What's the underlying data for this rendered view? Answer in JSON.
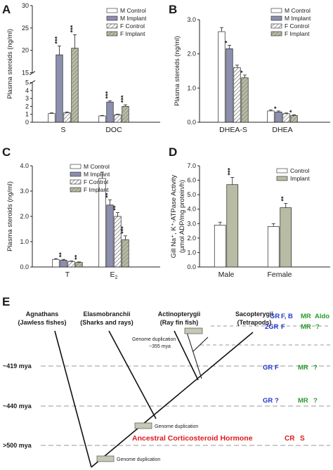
{
  "colors": {
    "m_control": "#ffffff",
    "m_implant": "#8c8fae",
    "f_control": "#ffffff",
    "f_implant": "#b9bca4",
    "implant_D": "#b9bca4",
    "gr_blue": "#2238c9",
    "mr_green": "#2a9a2a",
    "cr_red": "#e0191c",
    "dash_gray": "#999999",
    "box_gray": "#c4c8b4"
  },
  "panels": {
    "A": {
      "letter": "A"
    },
    "B": {
      "letter": "B"
    },
    "C": {
      "letter": "C"
    },
    "D": {
      "letter": "D"
    },
    "E": {
      "letter": "E"
    }
  },
  "chart_data": [
    {
      "panel": "A",
      "type": "bar",
      "ylabel": "Plasma steroids (ng/ml)",
      "categories": [
        "S",
        "DOC"
      ],
      "ylim": [
        0,
        30
      ],
      "axis_break": {
        "from": 5,
        "to": 15
      },
      "yticks": [
        0,
        1,
        2,
        3,
        4,
        5,
        15,
        20,
        25,
        30
      ],
      "legend": [
        "M Control",
        "M Implant",
        "F Control",
        "F Implant"
      ],
      "series": [
        {
          "name": "M Control",
          "values": [
            1.1,
            0.8
          ],
          "errors": [
            0.08,
            0.06
          ],
          "stars": [
            "",
            ""
          ]
        },
        {
          "name": "M Implant",
          "values": [
            19.0,
            2.55
          ],
          "errors": [
            2.0,
            0.15
          ],
          "stars": [
            "***",
            "***"
          ]
        },
        {
          "name": "F Control",
          "values": [
            1.2,
            0.95
          ],
          "errors": [
            0.1,
            0.07
          ],
          "stars": [
            "",
            ""
          ]
        },
        {
          "name": "F Implant",
          "values": [
            20.5,
            2.0
          ],
          "errors": [
            3.0,
            0.2
          ],
          "stars": [
            "***",
            "***"
          ]
        }
      ]
    },
    {
      "panel": "B",
      "type": "bar",
      "ylabel": "Plasma steroids (ng/ml)",
      "categories": [
        "DHEA-S",
        "DHEA"
      ],
      "ylim": [
        0,
        3.0
      ],
      "yticks": [
        0.0,
        1.0,
        2.0,
        3.0
      ],
      "legend": [
        "M Control",
        "M Implant",
        "F Control",
        "F Implant"
      ],
      "series": [
        {
          "name": "M Control",
          "values": [
            2.65,
            0.33
          ],
          "errors": [
            0.12,
            0.03
          ],
          "stars": [
            "",
            ""
          ]
        },
        {
          "name": "M Implant",
          "values": [
            2.15,
            0.3
          ],
          "errors": [
            0.1,
            0.03
          ],
          "stars": [
            "*",
            "*"
          ]
        },
        {
          "name": "F Control",
          "values": [
            1.6,
            0.25
          ],
          "errors": [
            0.07,
            0.02
          ],
          "stars": [
            "",
            ""
          ]
        },
        {
          "name": "F Implant",
          "values": [
            1.3,
            0.2
          ],
          "errors": [
            0.08,
            0.02
          ],
          "stars": [
            "*",
            "*"
          ]
        }
      ]
    },
    {
      "panel": "C",
      "type": "bar",
      "ylabel": "Plasma steroids (ng/ml)",
      "categories": [
        "T",
        "E₂"
      ],
      "ylim": [
        0,
        4.0
      ],
      "yticks": [
        0.0,
        1.0,
        2.0,
        3.0,
        4.0
      ],
      "legend": [
        "M Control",
        "M Implant",
        "F Control",
        "F Implant"
      ],
      "series": [
        {
          "name": "M Control",
          "values": [
            0.3,
            3.5
          ],
          "errors": [
            0.03,
            0.25
          ],
          "stars": [
            "",
            ""
          ]
        },
        {
          "name": "M Implant",
          "values": [
            0.27,
            2.45
          ],
          "errors": [
            0.03,
            0.2
          ],
          "stars": [
            "**",
            "**"
          ]
        },
        {
          "name": "F Control",
          "values": [
            0.22,
            2.0
          ],
          "errors": [
            0.02,
            0.15
          ],
          "stars": [
            "",
            "**"
          ]
        },
        {
          "name": "F Implant",
          "values": [
            0.18,
            1.08
          ],
          "errors": [
            0.02,
            0.15
          ],
          "stars": [
            "**",
            "***"
          ]
        }
      ]
    },
    {
      "panel": "D",
      "type": "bar",
      "ylabel": "Gill Na⁺, K⁺-ATPase Activity (μmol ADP/mg protein/h)",
      "ylabel_lines": [
        "Gill Na⁺, K⁺-ATPase Activity",
        "(μmol ADP/mg protein/h)"
      ],
      "categories": [
        "Male",
        "Female"
      ],
      "ylim": [
        0,
        7.0
      ],
      "yticks": [
        0.0,
        1.0,
        2.0,
        3.0,
        4.0,
        5.0,
        6.0,
        7.0
      ],
      "legend": [
        "Control",
        "Implant"
      ],
      "series": [
        {
          "name": "Control",
          "values": [
            2.9,
            2.8
          ],
          "errors": [
            0.2,
            0.2
          ],
          "stars": [
            "",
            ""
          ]
        },
        {
          "name": "Implant",
          "values": [
            5.7,
            4.1
          ],
          "errors": [
            0.5,
            0.3
          ],
          "stars": [
            "***",
            "**"
          ]
        }
      ]
    }
  ],
  "tree": {
    "taxa": [
      {
        "line1": "Agnathans",
        "line2": "(Jawless fishes)"
      },
      {
        "line1": "Elasmobranchii",
        "line2": "(Sharks and rays)"
      },
      {
        "line1": "Actinopterygii",
        "line2": "(Ray fin fish)"
      },
      {
        "line1": "Sacopterygii",
        "line2": "(Tetrapods)"
      }
    ],
    "mya_labels": [
      "~419 mya",
      "~440 mya",
      ">500 mya"
    ],
    "duplications": [
      {
        "label": "Genome duplication",
        "sub": "~355 mya"
      },
      {
        "label": "Genome duplication"
      },
      {
        "label": "Genome duplication"
      }
    ],
    "ancestral": {
      "label": "Ancestral Corticosteroid Hormone",
      "cr": "CR",
      "s": "S"
    },
    "rows": [
      {
        "gr": "GR",
        "ligand": "F, B",
        "mr": "MR",
        "mr_ligand": "Aldo"
      },
      {
        "gr": "2GR",
        "ligand": "F",
        "mr": "MR",
        "mr_ligand": "?"
      },
      {
        "gr": "GR",
        "ligand": "F",
        "mr": "MR",
        "mr_ligand": "?"
      },
      {
        "gr": "GR",
        "ligand": "?",
        "mr": "MR",
        "mr_ligand": "?"
      }
    ]
  }
}
